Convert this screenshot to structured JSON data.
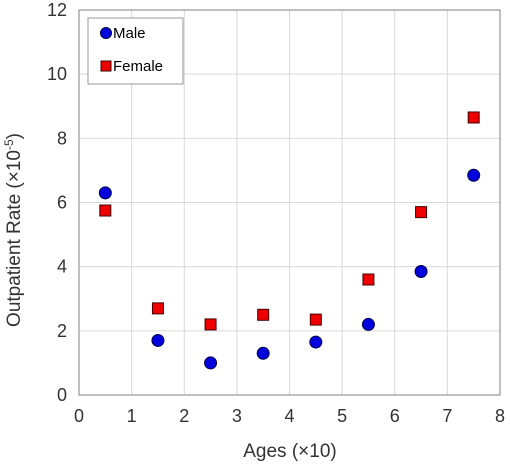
{
  "chart_data": {
    "type": "scatter",
    "xlabel": "Ages (×10)",
    "ylabel_main": "Outpatient Rate (×10",
    "ylabel_exp": "-5",
    "ylabel_close": ")",
    "xlim": [
      0,
      8
    ],
    "ylim": [
      0,
      12
    ],
    "x_ticks": [
      0,
      1,
      2,
      3,
      4,
      5,
      6,
      7,
      8
    ],
    "y_ticks": [
      0,
      2,
      4,
      6,
      8,
      10,
      12
    ],
    "grid": true,
    "legend_position": "top-left",
    "series": [
      {
        "name": "Male",
        "marker": "circle",
        "color": "#0000dd",
        "points": [
          {
            "x": 0.5,
            "y": 6.3
          },
          {
            "x": 1.5,
            "y": 1.7
          },
          {
            "x": 2.5,
            "y": 1.0
          },
          {
            "x": 3.5,
            "y": 1.3
          },
          {
            "x": 4.5,
            "y": 1.65
          },
          {
            "x": 5.5,
            "y": 2.2
          },
          {
            "x": 6.5,
            "y": 3.85
          },
          {
            "x": 7.5,
            "y": 6.85
          }
        ]
      },
      {
        "name": "Female",
        "marker": "square",
        "color": "#ee0000",
        "points": [
          {
            "x": 0.5,
            "y": 5.75
          },
          {
            "x": 1.5,
            "y": 2.7
          },
          {
            "x": 2.5,
            "y": 2.2
          },
          {
            "x": 3.5,
            "y": 2.5
          },
          {
            "x": 4.5,
            "y": 2.35
          },
          {
            "x": 5.5,
            "y": 3.6
          },
          {
            "x": 6.5,
            "y": 5.7
          },
          {
            "x": 7.5,
            "y": 8.65
          }
        ]
      }
    ]
  }
}
